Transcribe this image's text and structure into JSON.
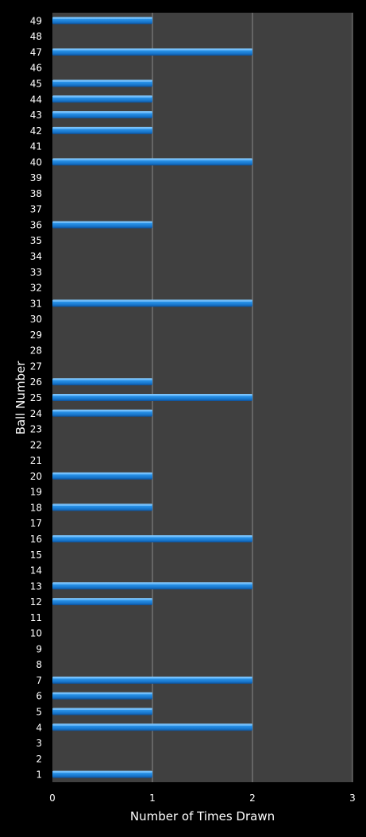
{
  "chart_data": {
    "type": "bar",
    "orientation": "horizontal",
    "title": "",
    "xlabel": "Number of Times Drawn",
    "ylabel": "Ball Number",
    "xlim": [
      0,
      3
    ],
    "xticks": [
      "0",
      "1",
      "2",
      "3"
    ],
    "grid": "vertical",
    "legend": "none",
    "colors": {
      "bar": "#1e88e0",
      "bar_highlight": "#7fc4ff",
      "plot_bg": "#404040",
      "page_bg": "#000000",
      "text": "#ffffff",
      "grid": "#8a8a8a"
    },
    "categories": [
      "1",
      "2",
      "3",
      "4",
      "5",
      "6",
      "7",
      "8",
      "9",
      "10",
      "11",
      "12",
      "13",
      "14",
      "15",
      "16",
      "17",
      "18",
      "19",
      "20",
      "21",
      "22",
      "23",
      "24",
      "25",
      "26",
      "27",
      "28",
      "29",
      "30",
      "31",
      "32",
      "33",
      "34",
      "35",
      "36",
      "37",
      "38",
      "39",
      "40",
      "41",
      "42",
      "43",
      "44",
      "45",
      "46",
      "47",
      "48",
      "49"
    ],
    "values": [
      1,
      0,
      0,
      2,
      1,
      1,
      2,
      0,
      0,
      0,
      0,
      1,
      2,
      0,
      0,
      2,
      0,
      1,
      0,
      1,
      0,
      0,
      0,
      1,
      2,
      1,
      0,
      0,
      0,
      0,
      2,
      0,
      0,
      0,
      0,
      1,
      0,
      0,
      0,
      2,
      0,
      1,
      1,
      1,
      1,
      0,
      2,
      0,
      1
    ]
  }
}
